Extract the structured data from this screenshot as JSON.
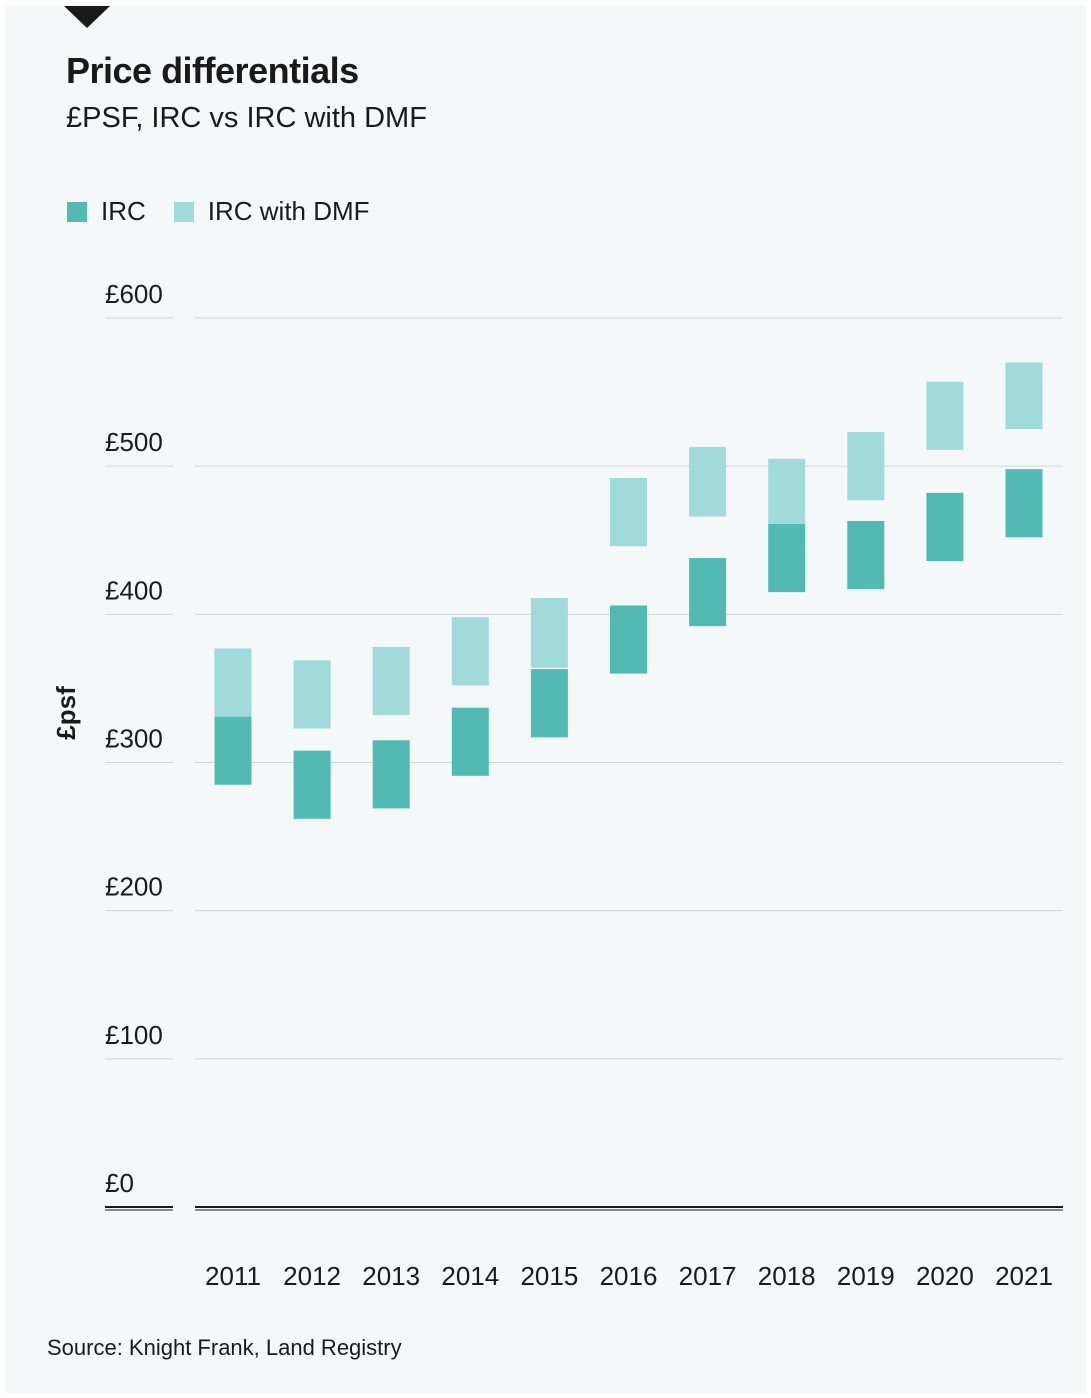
{
  "header": {
    "title": "Price differentials",
    "subtitle": "£PSF, IRC vs IRC with DMF"
  },
  "legend": [
    {
      "label": "IRC",
      "color": "#52bab2"
    },
    {
      "label": "IRC with DMF",
      "color": "#a0dadb"
    }
  ],
  "source": "Source: Knight Frank, Land Registry",
  "chart_data": {
    "type": "bar",
    "title": "Price differentials",
    "subtitle": "£PSF, IRC vs IRC with DMF",
    "ylabel": "£psf",
    "xlabel": "",
    "ylim": [
      0,
      600
    ],
    "yticks": [
      0,
      100,
      200,
      300,
      400,
      500,
      600
    ],
    "ytick_labels": [
      "£0",
      "£100",
      "£200",
      "£300",
      "£400",
      "£500",
      "£600"
    ],
    "categories": [
      "2011",
      "2012",
      "2013",
      "2014",
      "2015",
      "2016",
      "2017",
      "2018",
      "2019",
      "2020",
      "2021"
    ],
    "series": [
      {
        "name": "IRC",
        "color": "#52bab2",
        "ranges": [
          [
            285,
            331
          ],
          [
            262,
            308
          ],
          [
            269,
            315
          ],
          [
            291,
            337
          ],
          [
            317,
            363
          ],
          [
            360,
            406
          ],
          [
            392,
            438
          ],
          [
            415,
            461
          ],
          [
            417,
            463
          ],
          [
            436,
            482
          ],
          [
            452,
            498
          ]
        ]
      },
      {
        "name": "IRC with DMF",
        "color": "#a0dadb",
        "ranges": [
          [
            331,
            377
          ],
          [
            323,
            369
          ],
          [
            332,
            378
          ],
          [
            352,
            398
          ],
          [
            364,
            411
          ],
          [
            446,
            492
          ],
          [
            466,
            513
          ],
          [
            461,
            505
          ],
          [
            477,
            523
          ],
          [
            511,
            557
          ],
          [
            525,
            570
          ]
        ]
      }
    ],
    "grid": true,
    "legend_position": "top-left"
  }
}
